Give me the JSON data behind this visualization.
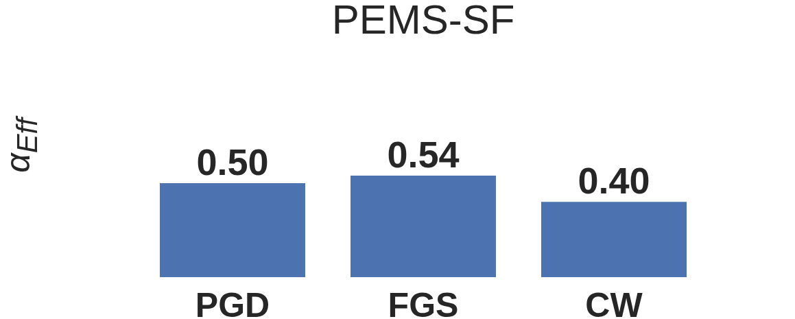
{
  "chart_data": {
    "type": "bar",
    "title": "PEMS-SF",
    "ylabel": "α$_{Eff}$",
    "categories": [
      "PGD",
      "FGS",
      "CW"
    ],
    "values": [
      0.5,
      0.54,
      0.4
    ],
    "color": "#4c72b0",
    "data_labels": true,
    "value_labels": [
      "0.50",
      "0.54",
      "0.40"
    ],
    "tick_labels": "x"
  }
}
